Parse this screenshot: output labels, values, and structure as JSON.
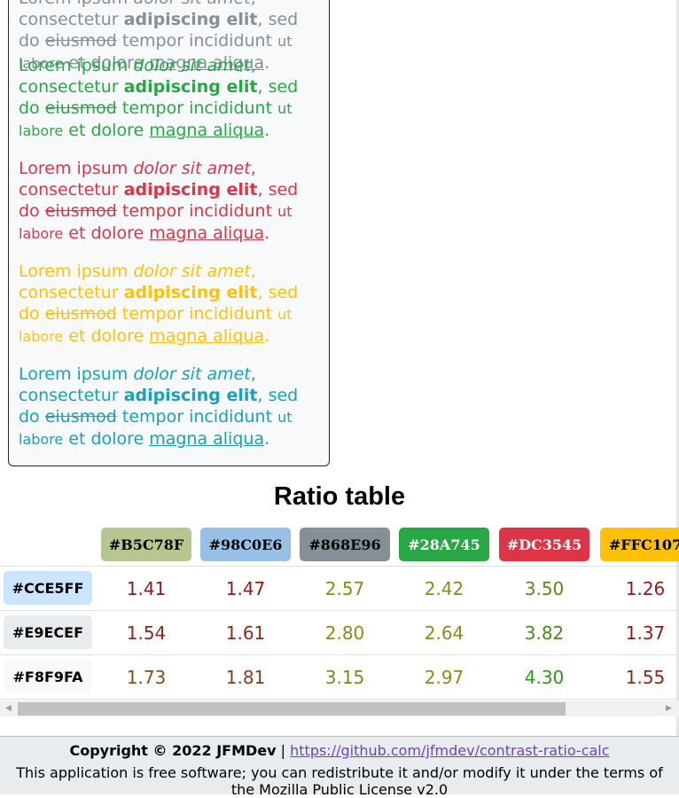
{
  "sample_text": {
    "part1": "Lorem ipsum ",
    "italic": "dolor sit amet",
    "part2": ", consectetur ",
    "bold": "adipiscing elit",
    "part3": ", sed do ",
    "strike": "eiusmod",
    "part4": " tempor incididunt ",
    "small": "ut labore",
    "part5": " et dolore ",
    "underline": "magna aliqua",
    "end": "."
  },
  "paragraph_colors": [
    "#868E96",
    "#28A745",
    "#DC3545",
    "#FFC107",
    "#17A2B8"
  ],
  "ratio_table": {
    "title": "Ratio table",
    "columns": [
      {
        "label": "#B5C78F",
        "bg": "#B5C78F"
      },
      {
        "label": "#98C0E6",
        "bg": "#98C0E6"
      },
      {
        "label": "#868E96",
        "bg": "#868E96"
      },
      {
        "label": "#28A745",
        "bg": "#28A745"
      },
      {
        "label": "#DC3545",
        "bg": "#DC3545"
      },
      {
        "label": "#FFC107",
        "bg": "#FFC107"
      }
    ],
    "rows": [
      {
        "label": "#CCE5FF",
        "bg": "#CCE5FF",
        "values": [
          "1.41",
          "1.47",
          "2.57",
          "2.42",
          "3.50",
          "1.26"
        ],
        "colors": [
          "#8B1A1A",
          "#8B1A1A",
          "#8A8A1A",
          "#8A8A1A",
          "#5A8A1A",
          "#8B1A1A"
        ]
      },
      {
        "label": "#E9ECEF",
        "bg": "#E9ECEF",
        "values": [
          "1.54",
          "1.61",
          "2.80",
          "2.64",
          "3.82",
          "1.37"
        ],
        "colors": [
          "#8B2A1A",
          "#8B2A1A",
          "#8A8A1A",
          "#8A8A1A",
          "#4A8A1A",
          "#8B1A1A"
        ]
      },
      {
        "label": "#F8F9FA",
        "bg": "#F8F9FA",
        "values": [
          "1.73",
          "1.81",
          "3.15",
          "2.97",
          "4.30",
          "1.55"
        ],
        "colors": [
          "#8B4A1A",
          "#8B3A1A",
          "#7A8A1A",
          "#8A8A1A",
          "#2A9A1A",
          "#8B2A1A"
        ]
      }
    ]
  },
  "footer": {
    "copyright": "Copyright © 2022 JFMDev",
    "separator": " | ",
    "link": "https://github.com/jfmdev/contrast-ratio-calc",
    "license": "This application is free software; you can redistribute it and/or modify it under the terms of the Mozilla Public License v2.0"
  }
}
